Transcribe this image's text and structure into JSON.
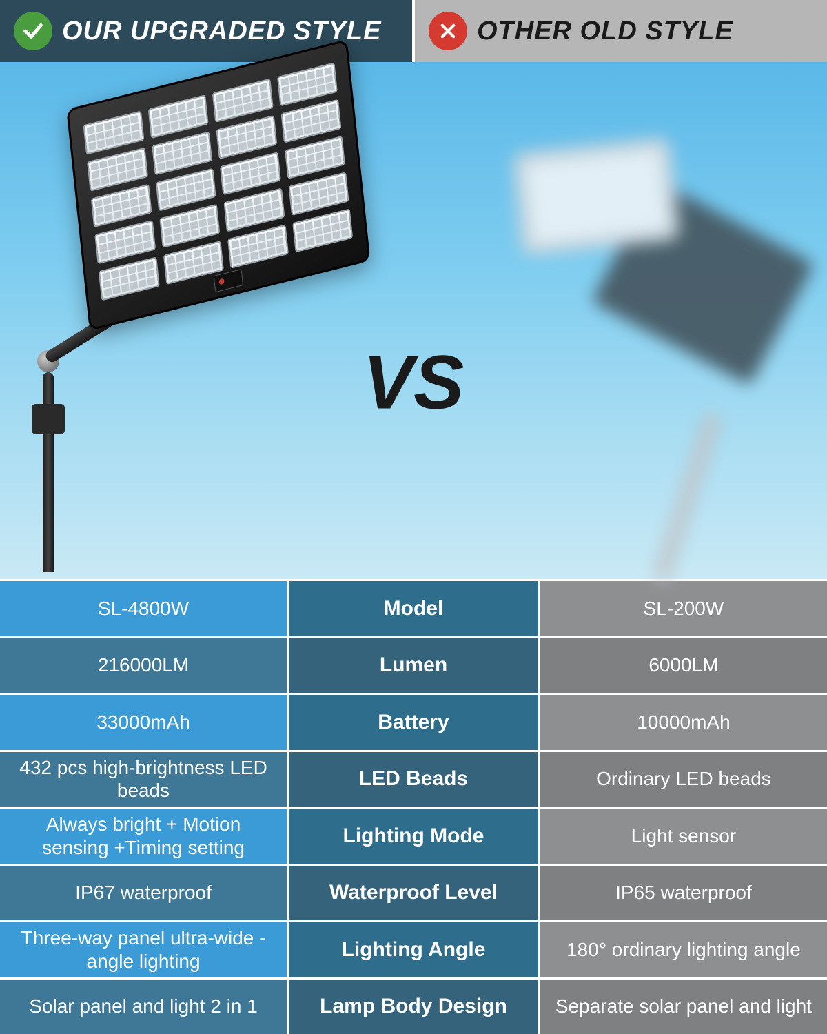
{
  "header": {
    "left_title": "OUR UPGRADED STYLE",
    "right_title": "OTHER OLD STYLE",
    "left_bg": "#2c4a5a",
    "right_bg": "#b6b6b6",
    "check_bg": "#4a9d3f",
    "cross_bg": "#d43a2f"
  },
  "hero": {
    "vs_label": "VS",
    "bg_gradient_top": "#5ab8e8",
    "bg_gradient_bottom": "#c9e9f5"
  },
  "table": {
    "left_colors": [
      "#3a9bd6",
      "#3f7797",
      "#3a9bd6",
      "#3f7797",
      "#3a9bd6",
      "#3f7797",
      "#3a9bd6",
      "#3f7797"
    ],
    "mid_colors": [
      "#2f6d8c",
      "#35637b",
      "#2f6d8c",
      "#35637b",
      "#2f6d8c",
      "#35637b",
      "#2f6d8c",
      "#35637b"
    ],
    "right_colors": [
      "#8d8f91",
      "#7e8082",
      "#8d8f91",
      "#7e8082",
      "#8d8f91",
      "#7e8082",
      "#8d8f91",
      "#7e8082"
    ],
    "rows": [
      {
        "left": "SL-4800W",
        "mid": "Model",
        "right": "SL-200W"
      },
      {
        "left": "216000LM",
        "mid": "Lumen",
        "right": "6000LM"
      },
      {
        "left": "33000mAh",
        "mid": "Battery",
        "right": "10000mAh"
      },
      {
        "left": "432 pcs high-brightness LED beads",
        "mid": "LED  Beads",
        "right": "Ordinary LED  beads"
      },
      {
        "left": "Always bright + Motion sensing +Timing setting",
        "mid": "Lighting Mode",
        "right": "Light sensor"
      },
      {
        "left": "IP67 waterproof",
        "mid": "Waterproof Level",
        "right": "IP65 waterproof"
      },
      {
        "left": "Three-way panel ultra-wide -angle lighting",
        "mid": "Lighting Angle",
        "right": "180° ordinary lighting angle"
      },
      {
        "left": "Solar panel and light 2 in 1",
        "mid": "Lamp Body Design",
        "right": "Separate solar panel and light"
      }
    ]
  }
}
